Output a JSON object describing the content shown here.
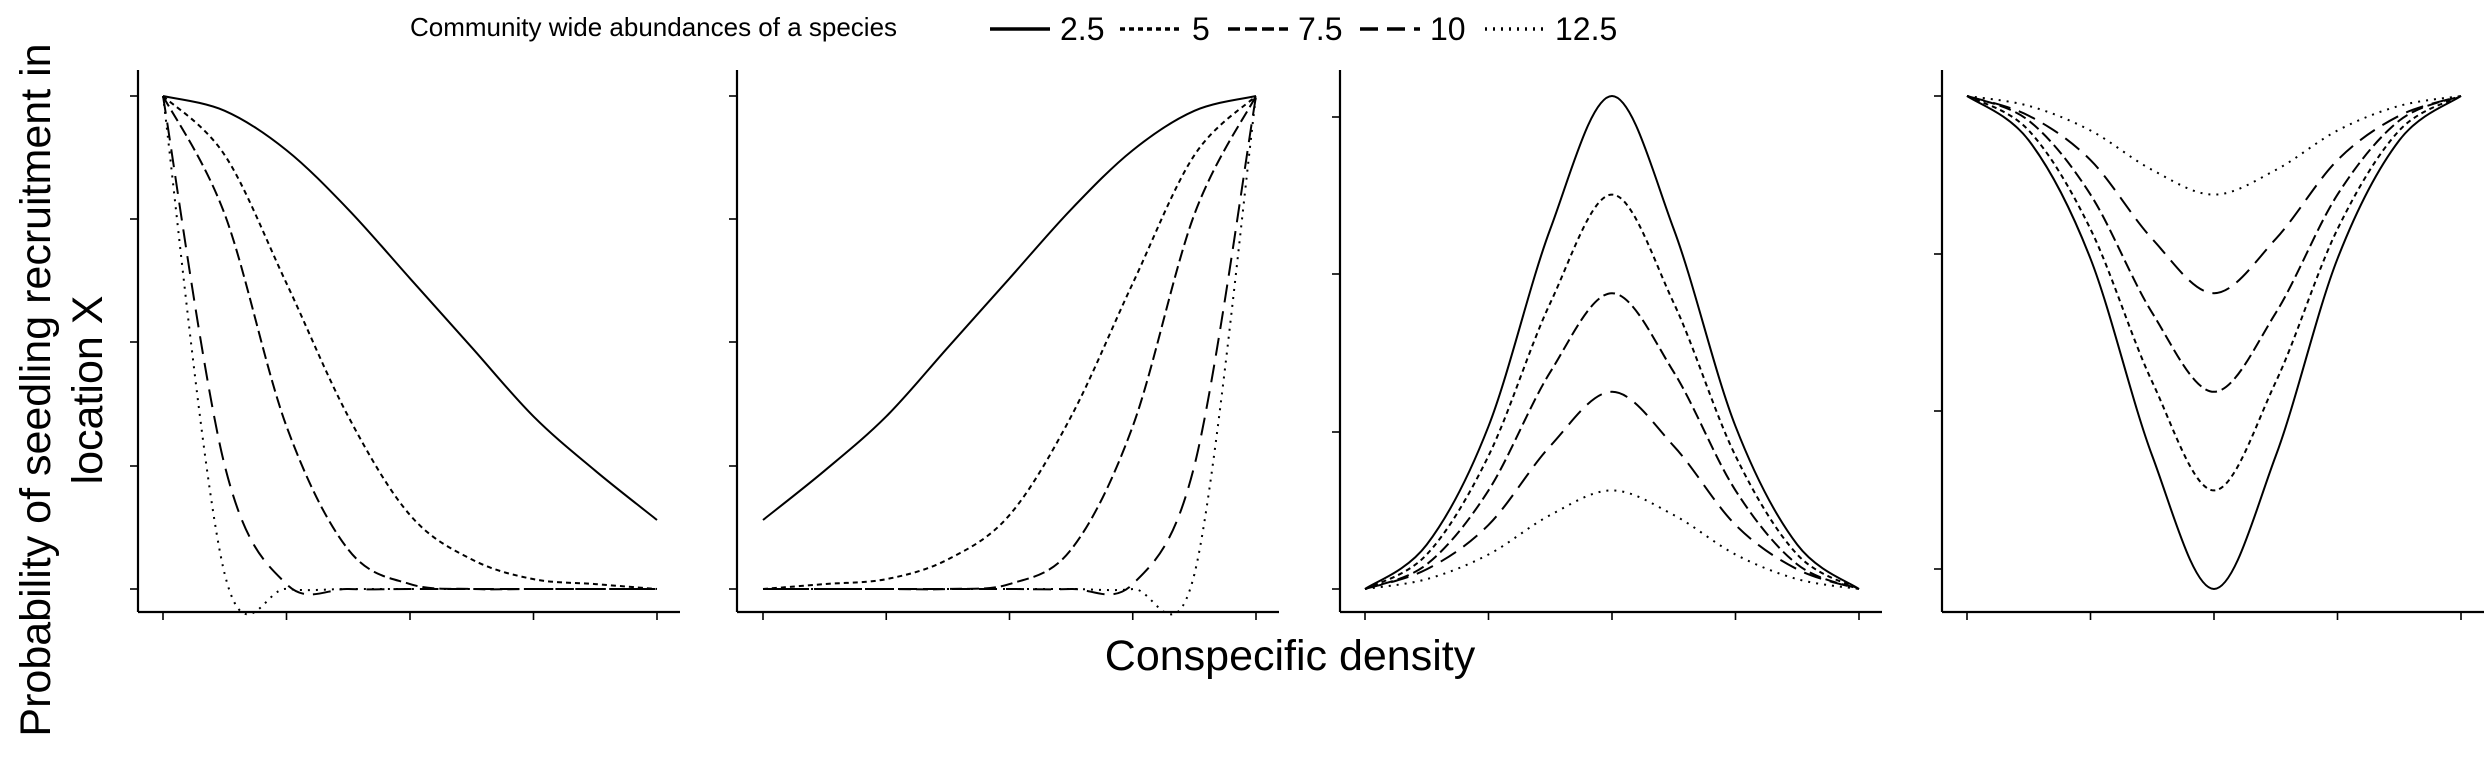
{
  "legend": {
    "title": "Community wide abundances of a species",
    "entries": [
      {
        "label": "2.5",
        "dash": "solid"
      },
      {
        "label": "5",
        "dash": "short-dash"
      },
      {
        "label": "7.5",
        "dash": "dash"
      },
      {
        "label": "10",
        "dash": "long-dash"
      },
      {
        "label": "12.5",
        "dash": "dotted"
      }
    ]
  },
  "axes": {
    "xlabel": "Conspecific density",
    "ylabel_line1": "Probability of seedling recruitment in",
    "ylabel_line2": "location X"
  },
  "chart_data": [
    {
      "type": "line",
      "panel": 1,
      "x": [
        0,
        0.5,
        1,
        1.5,
        2,
        2.5,
        3,
        3.5,
        4
      ],
      "x_ticks_labeled": false,
      "y_ticks_labeled": false,
      "grid": false,
      "series": [
        {
          "name": "2.5",
          "values": [
            1.0,
            0.97,
            0.89,
            0.77,
            0.63,
            0.49,
            0.35,
            0.24,
            0.14
          ]
        },
        {
          "name": "5",
          "values": [
            1.0,
            0.88,
            0.62,
            0.35,
            0.15,
            0.06,
            0.02,
            0.01,
            0.0
          ]
        },
        {
          "name": "7.5",
          "values": [
            1.0,
            0.76,
            0.33,
            0.08,
            0.01,
            0.0,
            0.0,
            0.0,
            0.0
          ]
        },
        {
          "name": "10",
          "values": [
            1.0,
            0.25,
            0.01,
            0.0,
            0.0,
            0.0,
            0.0,
            0.0,
            0.0
          ]
        },
        {
          "name": "12.5",
          "values": [
            1.0,
            0.03,
            0.0,
            0.0,
            0.0,
            0.0,
            0.0,
            0.0,
            0.0
          ]
        }
      ]
    },
    {
      "type": "line",
      "panel": 2,
      "x": [
        0,
        0.5,
        1,
        1.5,
        2,
        2.5,
        3,
        3.5,
        4
      ],
      "x_ticks_labeled": false,
      "y_ticks_labeled": false,
      "grid": false,
      "series": [
        {
          "name": "2.5",
          "values": [
            0.14,
            0.24,
            0.35,
            0.49,
            0.63,
            0.77,
            0.89,
            0.97,
            1.0
          ]
        },
        {
          "name": "5",
          "values": [
            0.0,
            0.01,
            0.02,
            0.06,
            0.15,
            0.35,
            0.62,
            0.88,
            1.0
          ]
        },
        {
          "name": "7.5",
          "values": [
            0.0,
            0.0,
            0.0,
            0.0,
            0.01,
            0.08,
            0.33,
            0.76,
            1.0
          ]
        },
        {
          "name": "10",
          "values": [
            0.0,
            0.0,
            0.0,
            0.0,
            0.0,
            0.0,
            0.01,
            0.25,
            1.0
          ]
        },
        {
          "name": "12.5",
          "values": [
            0.0,
            0.0,
            0.0,
            0.0,
            0.0,
            0.0,
            0.0,
            0.03,
            1.0
          ]
        }
      ]
    },
    {
      "type": "line",
      "panel": 3,
      "x": [
        0,
        0.5,
        1,
        1.5,
        2,
        2.5,
        3,
        3.5,
        4
      ],
      "x_ticks_labeled": false,
      "y_ticks_labeled": false,
      "grid": false,
      "series": [
        {
          "name": "2.5",
          "values": [
            0.0,
            0.09,
            0.33,
            0.73,
            1.0,
            0.73,
            0.33,
            0.09,
            0.0
          ]
        },
        {
          "name": "5",
          "values": [
            0.0,
            0.07,
            0.27,
            0.58,
            0.8,
            0.58,
            0.27,
            0.07,
            0.0
          ]
        },
        {
          "name": "7.5",
          "values": [
            0.0,
            0.05,
            0.2,
            0.44,
            0.6,
            0.44,
            0.2,
            0.05,
            0.0
          ]
        },
        {
          "name": "10",
          "values": [
            0.0,
            0.04,
            0.13,
            0.29,
            0.4,
            0.29,
            0.13,
            0.04,
            0.0
          ]
        },
        {
          "name": "12.5",
          "values": [
            0.0,
            0.02,
            0.07,
            0.15,
            0.2,
            0.15,
            0.07,
            0.02,
            0.0
          ]
        }
      ]
    },
    {
      "type": "line",
      "panel": 4,
      "x": [
        0,
        0.5,
        1,
        1.5,
        2,
        2.5,
        3,
        3.5,
        4
      ],
      "x_ticks_labeled": false,
      "y_ticks_labeled": false,
      "grid": false,
      "series": [
        {
          "name": "2.5",
          "values": [
            1.0,
            0.91,
            0.67,
            0.27,
            0.0,
            0.27,
            0.67,
            0.91,
            1.0
          ]
        },
        {
          "name": "5",
          "values": [
            1.0,
            0.93,
            0.73,
            0.42,
            0.2,
            0.42,
            0.73,
            0.93,
            1.0
          ]
        },
        {
          "name": "7.5",
          "values": [
            1.0,
            0.95,
            0.8,
            0.56,
            0.4,
            0.56,
            0.8,
            0.95,
            1.0
          ]
        },
        {
          "name": "10",
          "values": [
            1.0,
            0.96,
            0.87,
            0.71,
            0.6,
            0.71,
            0.87,
            0.96,
            1.0
          ]
        },
        {
          "name": "12.5",
          "values": [
            1.0,
            0.98,
            0.93,
            0.85,
            0.8,
            0.85,
            0.93,
            0.98,
            1.0
          ]
        }
      ]
    }
  ]
}
